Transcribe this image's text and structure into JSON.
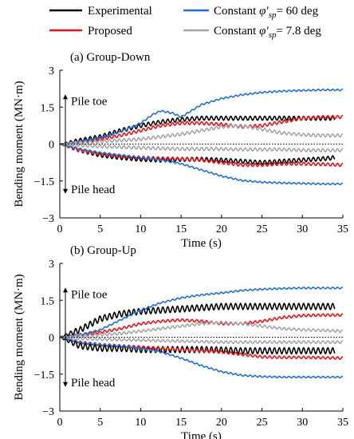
{
  "legend": [
    {
      "name": "Experimental",
      "color": "#000000"
    },
    {
      "name": "Proposed",
      "color": "#e8141c"
    },
    {
      "name_prefix": "Constant ",
      "name_symbol": "φ′",
      "name_sub": "sp",
      "name_suffix": "= 60 deg",
      "color": "#1f6fd1"
    },
    {
      "name_prefix": "Constant ",
      "name_symbol": "φ′",
      "name_sub": "sp",
      "name_suffix": "= 7.8 deg",
      "color": "#a6a6a6"
    }
  ],
  "chart_data": [
    {
      "type": "line",
      "title": "(a) Group-Down",
      "xlabel": "Time (s)",
      "ylabel": "Bending moment (MN·m)",
      "xlim": [
        0,
        35
      ],
      "ylim": [
        -3,
        3
      ],
      "xticks": [
        0,
        5,
        10,
        15,
        20,
        25,
        30,
        35
      ],
      "yticks": [
        3,
        1.5,
        0,
        -1.5,
        -3
      ],
      "ytick_labels": [
        "3",
        "1.5",
        "0",
        "−1.5",
        "−3"
      ],
      "annotations": [
        {
          "text": "Pile toe"
        },
        {
          "text": "Pile head"
        }
      ],
      "series": [
        {
          "ref": "experimental",
          "color": "#000000",
          "osc": 0.08,
          "period": 0.6,
          "x_end": 34,
          "upper": [
            [
              0,
              0
            ],
            [
              2.5,
              0.15
            ],
            [
              5,
              0.3
            ],
            [
              7.5,
              0.55
            ],
            [
              10,
              0.75
            ],
            [
              12.5,
              0.9
            ],
            [
              15,
              1
            ],
            [
              17.5,
              1.05
            ],
            [
              20,
              1.05
            ],
            [
              22.5,
              1.05
            ],
            [
              25,
              1.05
            ],
            [
              27.5,
              1.05
            ],
            [
              30,
              1.05
            ],
            [
              32.5,
              1.05
            ],
            [
              34,
              1.05
            ]
          ],
          "lower": [
            [
              0,
              0
            ],
            [
              2.5,
              -0.25
            ],
            [
              5,
              -0.45
            ],
            [
              7.5,
              -0.55
            ],
            [
              10,
              -0.62
            ],
            [
              12.5,
              -0.65
            ],
            [
              15,
              -0.62
            ],
            [
              17.5,
              -0.62
            ],
            [
              20,
              -0.65
            ],
            [
              22.5,
              -0.7
            ],
            [
              25,
              -0.75
            ],
            [
              27.5,
              -0.7
            ],
            [
              30,
              -0.65
            ],
            [
              32.5,
              -0.6
            ],
            [
              34,
              -0.55
            ]
          ]
        },
        {
          "ref": "proposed",
          "color": "#e8141c",
          "osc": 0.06,
          "period": 0.6,
          "x_end": 35,
          "upper": [
            [
              0,
              0
            ],
            [
              2.5,
              0.1
            ],
            [
              5,
              0.2
            ],
            [
              7.5,
              0.35
            ],
            [
              10,
              0.55
            ],
            [
              12.5,
              0.75
            ],
            [
              15,
              0.85
            ],
            [
              17.5,
              0.85
            ],
            [
              20,
              0.8
            ],
            [
              22.5,
              0.7
            ],
            [
              25,
              0.75
            ],
            [
              27.5,
              0.9
            ],
            [
              30,
              1.05
            ],
            [
              32.5,
              1.1
            ],
            [
              35,
              1.1
            ]
          ],
          "lower": [
            [
              0,
              0
            ],
            [
              2.5,
              -0.25
            ],
            [
              5,
              -0.4
            ],
            [
              7.5,
              -0.5
            ],
            [
              10,
              -0.55
            ],
            [
              12.5,
              -0.58
            ],
            [
              15,
              -0.6
            ],
            [
              17.5,
              -0.65
            ],
            [
              20,
              -0.75
            ],
            [
              22.5,
              -0.85
            ],
            [
              25,
              -0.85
            ],
            [
              27.5,
              -0.8
            ],
            [
              30,
              -0.8
            ],
            [
              32.5,
              -0.82
            ],
            [
              35,
              -0.85
            ]
          ]
        },
        {
          "ref": "phi60",
          "color": "#1f6fd1",
          "osc": 0.03,
          "period": 0.6,
          "x_end": 35,
          "upper": [
            [
              0,
              0
            ],
            [
              2.5,
              0.1
            ],
            [
              5,
              0.25
            ],
            [
              7.5,
              0.5
            ],
            [
              10,
              0.85
            ],
            [
              11.5,
              1.2
            ],
            [
              12.5,
              1.35
            ],
            [
              14,
              1.25
            ],
            [
              15,
              1.1
            ],
            [
              16,
              1.3
            ],
            [
              17.5,
              1.6
            ],
            [
              20,
              1.85
            ],
            [
              22.5,
              2
            ],
            [
              25,
              2.1
            ],
            [
              27.5,
              2.15
            ],
            [
              30,
              2.18
            ],
            [
              32.5,
              2.2
            ],
            [
              35,
              2.2
            ]
          ],
          "lower": [
            [
              0,
              0
            ],
            [
              2.5,
              -0.2
            ],
            [
              5,
              -0.35
            ],
            [
              7.5,
              -0.45
            ],
            [
              10,
              -0.55
            ],
            [
              12.5,
              -0.65
            ],
            [
              15,
              -0.8
            ],
            [
              17.5,
              -1.05
            ],
            [
              20,
              -1.3
            ],
            [
              22.5,
              -1.48
            ],
            [
              25,
              -1.55
            ],
            [
              27.5,
              -1.58
            ],
            [
              30,
              -1.6
            ],
            [
              32.5,
              -1.62
            ],
            [
              35,
              -1.62
            ]
          ]
        },
        {
          "ref": "phi7.8",
          "color": "#a6a6a6",
          "osc": 0.06,
          "period": 0.6,
          "x_end": 35,
          "upper": [
            [
              0,
              0
            ],
            [
              2.5,
              0.05
            ],
            [
              5,
              0.1
            ],
            [
              7.5,
              0.15
            ],
            [
              10,
              0.2
            ],
            [
              12.5,
              0.3
            ],
            [
              15,
              0.4
            ],
            [
              17.5,
              0.55
            ],
            [
              20,
              0.7
            ],
            [
              22.5,
              0.75
            ],
            [
              25,
              0.6
            ],
            [
              27.5,
              0.45
            ],
            [
              30,
              0.38
            ],
            [
              32.5,
              0.35
            ],
            [
              35,
              0.35
            ]
          ],
          "lower": [
            [
              0,
              0
            ],
            [
              2.5,
              -0.05
            ],
            [
              5,
              -0.1
            ],
            [
              7.5,
              -0.12
            ],
            [
              10,
              -0.15
            ],
            [
              12.5,
              -0.18
            ],
            [
              15,
              -0.2
            ],
            [
              17.5,
              -0.2
            ],
            [
              20,
              -0.2
            ],
            [
              22.5,
              -0.22
            ],
            [
              25,
              -0.22
            ],
            [
              27.5,
              -0.22
            ],
            [
              30,
              -0.25
            ],
            [
              32.5,
              -0.25
            ],
            [
              35,
              -0.25
            ]
          ]
        }
      ]
    },
    {
      "type": "line",
      "title": "(b) Group-Up",
      "xlabel": "Time (s)",
      "ylabel": "Bending moment (MN·m)",
      "xlim": [
        0,
        35
      ],
      "ylim": [
        -3,
        3
      ],
      "xticks": [
        0,
        5,
        10,
        15,
        20,
        25,
        30,
        35
      ],
      "yticks": [
        3,
        1.5,
        0,
        -1.5,
        -3
      ],
      "ytick_labels": [
        "3",
        "1.5",
        "0",
        "−1.5",
        "−3"
      ],
      "annotations": [
        {
          "text": "Pile toe"
        },
        {
          "text": "Pile head"
        }
      ],
      "series": [
        {
          "ref": "experimental",
          "color": "#000000",
          "osc": 0.12,
          "period": 0.6,
          "x_end": 34,
          "upper": [
            [
              0,
              0
            ],
            [
              2.5,
              0.3
            ],
            [
              5,
              0.75
            ],
            [
              7.5,
              0.95
            ],
            [
              10,
              1.05
            ],
            [
              12.5,
              1.1
            ],
            [
              15,
              1.15
            ],
            [
              17.5,
              1.2
            ],
            [
              20,
              1.25
            ],
            [
              22.5,
              1.25
            ],
            [
              25,
              1.25
            ],
            [
              27.5,
              1.25
            ],
            [
              30,
              1.25
            ],
            [
              32.5,
              1.25
            ],
            [
              34,
              1.25
            ]
          ],
          "lower": [
            [
              0,
              0
            ],
            [
              2.5,
              -0.35
            ],
            [
              5,
              -0.45
            ],
            [
              7.5,
              -0.45
            ],
            [
              10,
              -0.5
            ],
            [
              12.5,
              -0.5
            ],
            [
              15,
              -0.5
            ],
            [
              17.5,
              -0.5
            ],
            [
              20,
              -0.52
            ],
            [
              22.5,
              -0.55
            ],
            [
              25,
              -0.55
            ],
            [
              27.5,
              -0.55
            ],
            [
              30,
              -0.55
            ],
            [
              32.5,
              -0.55
            ],
            [
              34,
              -0.55
            ]
          ]
        },
        {
          "ref": "proposed",
          "color": "#e8141c",
          "osc": 0.05,
          "period": 0.6,
          "x_end": 35,
          "upper": [
            [
              0,
              0
            ],
            [
              2.5,
              0.1
            ],
            [
              5,
              0.2
            ],
            [
              7.5,
              0.35
            ],
            [
              10,
              0.55
            ],
            [
              12.5,
              0.65
            ],
            [
              15,
              0.7
            ],
            [
              17.5,
              0.65
            ],
            [
              20,
              0.55
            ],
            [
              22.5,
              0.55
            ],
            [
              25,
              0.65
            ],
            [
              27.5,
              0.8
            ],
            [
              30,
              0.88
            ],
            [
              32.5,
              0.9
            ],
            [
              35,
              0.9
            ]
          ],
          "lower": [
            [
              0,
              0
            ],
            [
              2.5,
              -0.2
            ],
            [
              5,
              -0.3
            ],
            [
              7.5,
              -0.35
            ],
            [
              10,
              -0.4
            ],
            [
              12.5,
              -0.45
            ],
            [
              15,
              -0.5
            ],
            [
              17.5,
              -0.55
            ],
            [
              20,
              -0.6
            ],
            [
              22.5,
              -0.7
            ],
            [
              25,
              -0.8
            ],
            [
              27.5,
              -0.82
            ],
            [
              30,
              -0.82
            ],
            [
              32.5,
              -0.83
            ],
            [
              35,
              -0.85
            ]
          ]
        },
        {
          "ref": "phi60",
          "color": "#1f6fd1",
          "osc": 0.03,
          "period": 0.6,
          "x_end": 35,
          "upper": [
            [
              0,
              0
            ],
            [
              2.5,
              0.1
            ],
            [
              5,
              0.3
            ],
            [
              7.5,
              0.7
            ],
            [
              10,
              1.1
            ],
            [
              12.5,
              1.4
            ],
            [
              15,
              1.6
            ],
            [
              17.5,
              1.72
            ],
            [
              20,
              1.8
            ],
            [
              22.5,
              1.9
            ],
            [
              25,
              1.95
            ],
            [
              27.5,
              1.98
            ],
            [
              30,
              2
            ],
            [
              32.5,
              2
            ],
            [
              35,
              2
            ]
          ],
          "lower": [
            [
              0,
              0
            ],
            [
              2.5,
              -0.2
            ],
            [
              5,
              -0.3
            ],
            [
              7.5,
              -0.35
            ],
            [
              10,
              -0.45
            ],
            [
              12.5,
              -0.6
            ],
            [
              15,
              -0.85
            ],
            [
              17.5,
              -1.15
            ],
            [
              20,
              -1.4
            ],
            [
              22.5,
              -1.55
            ],
            [
              25,
              -1.6
            ],
            [
              27.5,
              -1.62
            ],
            [
              30,
              -1.62
            ],
            [
              32.5,
              -1.62
            ],
            [
              35,
              -1.62
            ]
          ]
        },
        {
          "ref": "phi7.8",
          "color": "#a6a6a6",
          "osc": 0.05,
          "period": 0.6,
          "x_end": 35,
          "upper": [
            [
              0,
              0
            ],
            [
              2.5,
              0.05
            ],
            [
              5,
              0.1
            ],
            [
              7.5,
              0.15
            ],
            [
              10,
              0.25
            ],
            [
              12.5,
              0.35
            ],
            [
              15,
              0.45
            ],
            [
              17.5,
              0.55
            ],
            [
              20,
              0.6
            ],
            [
              22.5,
              0.55
            ],
            [
              25,
              0.45
            ],
            [
              27.5,
              0.35
            ],
            [
              30,
              0.3
            ],
            [
              32.5,
              0.28
            ],
            [
              35,
              0.25
            ]
          ],
          "lower": [
            [
              0,
              0
            ],
            [
              2.5,
              -0.05
            ],
            [
              5,
              -0.08
            ],
            [
              7.5,
              -0.1
            ],
            [
              10,
              -0.12
            ],
            [
              12.5,
              -0.14
            ],
            [
              15,
              -0.16
            ],
            [
              17.5,
              -0.18
            ],
            [
              20,
              -0.2
            ],
            [
              22.5,
              -0.2
            ],
            [
              25,
              -0.2
            ],
            [
              27.5,
              -0.2
            ],
            [
              30,
              -0.2
            ],
            [
              32.5,
              -0.2
            ],
            [
              35,
              -0.2
            ]
          ]
        }
      ]
    }
  ]
}
